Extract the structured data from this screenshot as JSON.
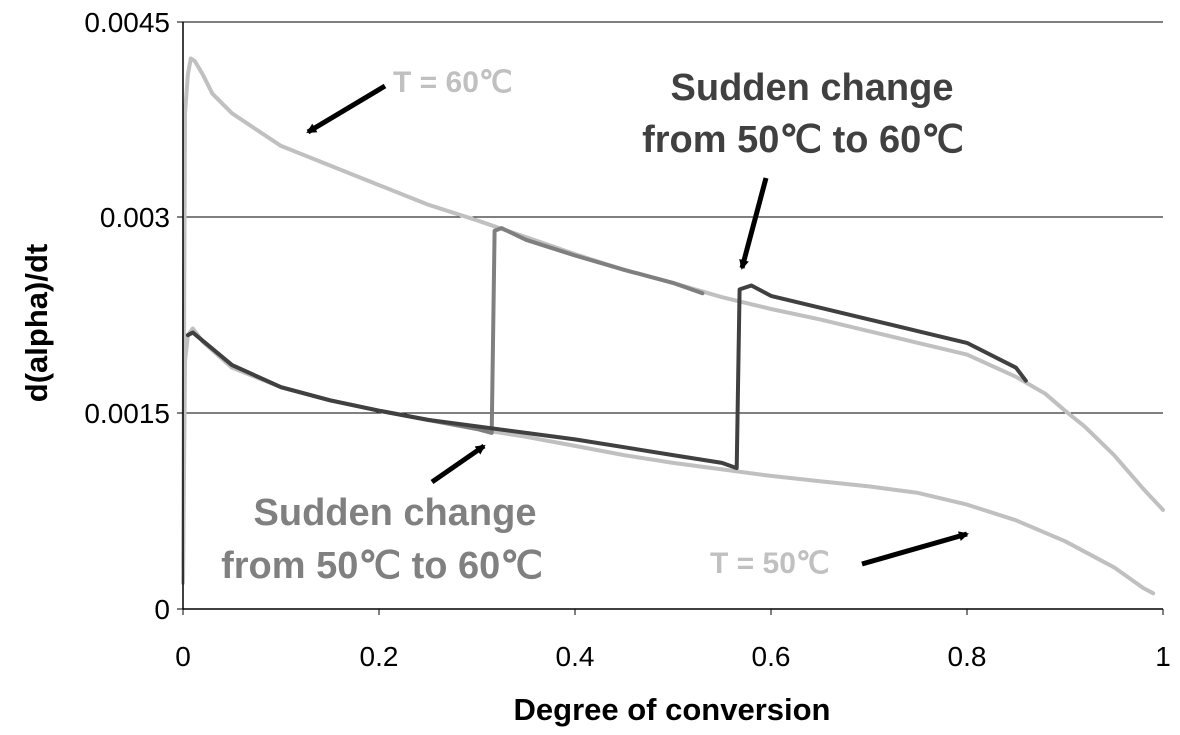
{
  "chart_data": {
    "type": "line",
    "title": "",
    "xlabel": "Degree of conversion",
    "ylabel": "d(alpha)/dt",
    "xlim": [
      0,
      1
    ],
    "ylim": [
      0,
      0.0045
    ],
    "x_ticks": [
      "0",
      "0.2",
      "0.4",
      "0.6",
      "0.8",
      "1"
    ],
    "y_ticks": [
      "0",
      "0.0015",
      "0.003",
      "0.0045"
    ],
    "grid": "horizontal",
    "legend": "none",
    "series": [
      {
        "color": "#c0c0c0",
        "x": [
          0.0,
          0.002,
          0.005,
          0.008,
          0.012,
          0.02,
          0.03,
          0.05,
          0.08,
          0.1,
          0.15,
          0.2,
          0.25,
          0.3,
          0.35,
          0.4,
          0.45,
          0.5,
          0.55,
          0.6,
          0.65,
          0.7,
          0.75,
          0.8,
          0.85,
          0.88,
          0.9,
          0.92,
          0.95,
          0.98,
          1.0
        ],
        "y": [
          0.0003,
          0.0038,
          0.0041,
          0.00422,
          0.0042,
          0.0041,
          0.00395,
          0.0038,
          0.00365,
          0.00355,
          0.0034,
          0.00325,
          0.0031,
          0.00298,
          0.00285,
          0.00272,
          0.0026,
          0.0025,
          0.00239,
          0.0023,
          0.00222,
          0.00213,
          0.00204,
          0.00195,
          0.00178,
          0.00165,
          0.00152,
          0.0014,
          0.00118,
          0.00092,
          0.00076
        ]
      },
      {
        "color": "#c0c0c0",
        "x": [
          0.0,
          0.002,
          0.005,
          0.01,
          0.02,
          0.05,
          0.1,
          0.15,
          0.2,
          0.25,
          0.3,
          0.35,
          0.4,
          0.45,
          0.5,
          0.55,
          0.6,
          0.65,
          0.7,
          0.75,
          0.8,
          0.85,
          0.9,
          0.95,
          0.98,
          0.99
        ],
        "y": [
          0.0002,
          0.0019,
          0.0021,
          0.00215,
          0.00205,
          0.00185,
          0.0017,
          0.0016,
          0.00152,
          0.00145,
          0.00138,
          0.00132,
          0.00125,
          0.00118,
          0.00112,
          0.00107,
          0.00102,
          0.00098,
          0.00094,
          0.00089,
          0.0008,
          0.00068,
          0.00052,
          0.00032,
          0.00016,
          0.00012
        ]
      },
      {
        "color": "#7f7f7f",
        "x": [
          0.005,
          0.01,
          0.05,
          0.1,
          0.15,
          0.2,
          0.25,
          0.3,
          0.315,
          0.318,
          0.325,
          0.35,
          0.4,
          0.45,
          0.5,
          0.53
        ],
        "y": [
          0.0021,
          0.00212,
          0.00187,
          0.0017,
          0.0016,
          0.00152,
          0.00145,
          0.00138,
          0.00135,
          0.0029,
          0.00292,
          0.00283,
          0.00271,
          0.0026,
          0.0025,
          0.00242
        ]
      },
      {
        "color": "#404040",
        "x": [
          0.005,
          0.01,
          0.05,
          0.1,
          0.15,
          0.2,
          0.25,
          0.3,
          0.35,
          0.4,
          0.45,
          0.5,
          0.55,
          0.565,
          0.568,
          0.58,
          0.6,
          0.65,
          0.7,
          0.75,
          0.8,
          0.85,
          0.86
        ],
        "y": [
          0.0021,
          0.00212,
          0.00187,
          0.0017,
          0.0016,
          0.00152,
          0.00145,
          0.0014,
          0.00135,
          0.0013,
          0.00124,
          0.00118,
          0.00112,
          0.00108,
          0.00245,
          0.00248,
          0.0024,
          0.00231,
          0.00222,
          0.00213,
          0.00204,
          0.00185,
          0.00175
        ]
      }
    ],
    "annotations": [
      {
        "text": "T = 60℃",
        "color": "#c0c0c0"
      },
      {
        "text": "Sudden change",
        "color": "#404040"
      },
      {
        "text": "from  50℃ to 60℃",
        "color": "#404040"
      },
      {
        "text": "Sudden change",
        "color": "#808080"
      },
      {
        "text": "from 50℃ to 60℃",
        "color": "#808080"
      },
      {
        "text": "T = 50℃",
        "color": "#c0c0c0"
      }
    ]
  }
}
